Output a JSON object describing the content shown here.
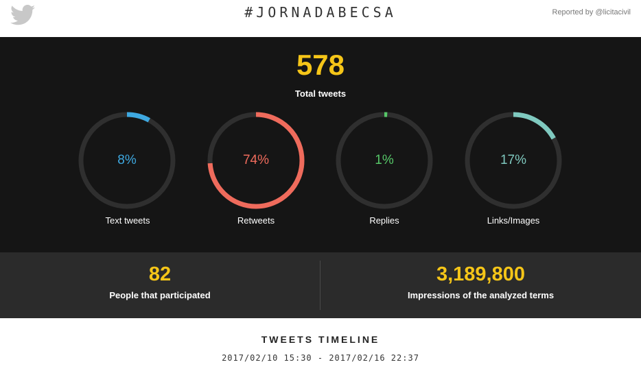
{
  "header": {
    "hashtag": "#JORNADABECSA",
    "reported_by": "Reported by @licitacivil",
    "logo_icon": "twitter-bird-icon"
  },
  "summary": {
    "total_tweets_value": "578",
    "total_tweets_label": "Total tweets"
  },
  "breakdown": [
    {
      "label": "Text tweets",
      "percent_text": "8%",
      "percent": 8,
      "color": "#3ea8e0"
    },
    {
      "label": "Retweets",
      "percent_text": "74%",
      "percent": 74,
      "color": "#ef6b5c"
    },
    {
      "label": "Replies",
      "percent_text": "1%",
      "percent": 1,
      "color": "#56c768"
    },
    {
      "label": "Links/Images",
      "percent_text": "17%",
      "percent": 17,
      "color": "#7fc9bf"
    }
  ],
  "stats": {
    "participants_value": "82",
    "participants_label": "People that participated",
    "impressions_value": "3,189,800",
    "impressions_label": "Impressions of the analyzed terms"
  },
  "timeline": {
    "title": "TWEETS TIMELINE",
    "range": "2017/02/10 15:30 - 2017/02/16 22:37"
  },
  "colors": {
    "accent": "#f5c518",
    "dark_bg": "#151515",
    "stats_bg": "#2b2b2b",
    "ring_track": "#2f2f2f"
  }
}
